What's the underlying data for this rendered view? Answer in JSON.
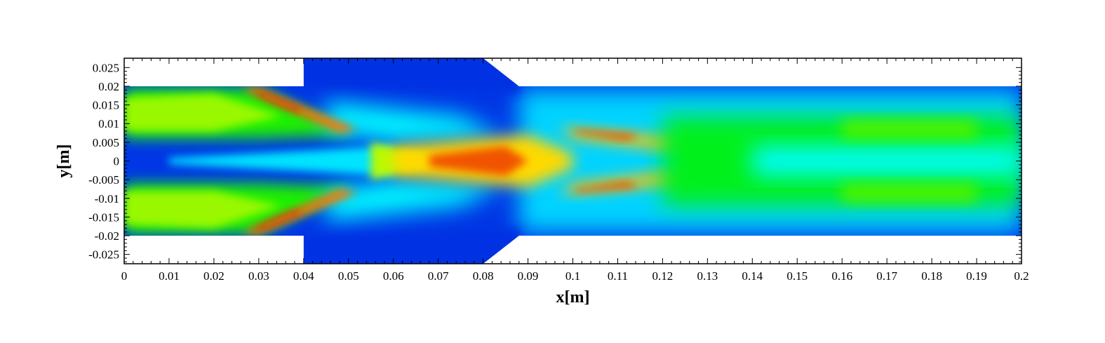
{
  "chart_data": {
    "type": "heatmap",
    "title": "",
    "xlabel": "x[m]",
    "ylabel": "y[m]",
    "xlim": [
      0,
      0.2
    ],
    "ylim": [
      -0.0275,
      0.0275
    ],
    "x_ticks": [
      "0",
      "0.01",
      "0.02",
      "0.03",
      "0.04",
      "0.05",
      "0.06",
      "0.07",
      "0.08",
      "0.09",
      "0.1",
      "0.11",
      "0.12",
      "0.13",
      "0.14",
      "0.15",
      "0.16",
      "0.17",
      "0.18",
      "0.19",
      "0.2"
    ],
    "x_tick_values": [
      0,
      0.01,
      0.02,
      0.03,
      0.04,
      0.05,
      0.06,
      0.07,
      0.08,
      0.09,
      0.1,
      0.11,
      0.12,
      0.13,
      0.14,
      0.15,
      0.16,
      0.17,
      0.18,
      0.19,
      0.2
    ],
    "y_ticks": [
      "0.025",
      "0.02",
      "0.015",
      "0.01",
      "0.005",
      "0",
      "-0.005",
      "-0.01",
      "-0.015",
      "-0.02",
      "-0.025"
    ],
    "y_tick_values": [
      0.025,
      0.02,
      0.015,
      0.01,
      0.005,
      0,
      -0.005,
      -0.01,
      -0.015,
      -0.02,
      -0.025
    ],
    "colormap": [
      "#0022dd",
      "#0077ff",
      "#00ffff",
      "#00ee00",
      "#ffff00",
      "#ff8800",
      "#dd0000"
    ],
    "legend": "none",
    "grid": false,
    "domain_walls": {
      "inlet_channel": {
        "x": [
          0,
          0.04
        ],
        "y": [
          -0.02,
          0.02
        ]
      },
      "expansion": {
        "x": [
          0.04,
          0.08
        ],
        "y": [
          -0.0275,
          0.0275
        ]
      },
      "taper": {
        "x": [
          0.08,
          0.088
        ],
        "y_from": 0.0275,
        "y_to": 0.02
      },
      "outlet_channel": {
        "x": [
          0.088,
          0.2
        ],
        "y": [
          -0.02,
          0.02
        ]
      }
    },
    "features": [
      {
        "name": "core jet",
        "x": [
          0,
          0.2
        ],
        "y": 0,
        "level": 0.25
      },
      {
        "name": "upper stream",
        "x": [
          0,
          0.04
        ],
        "y": 0.0125,
        "level": 0.55
      },
      {
        "name": "lower stream",
        "x": [
          0,
          0.04
        ],
        "y": -0.0125,
        "level": 0.55
      },
      {
        "name": "upper shock",
        "x": [
          0.027,
          0.05
        ],
        "y": [
          0.0185,
          0.008
        ],
        "level": 0.9
      },
      {
        "name": "lower shock",
        "x": [
          0.027,
          0.05
        ],
        "y": [
          -0.0185,
          -0.008
        ],
        "level": 0.9
      },
      {
        "name": "central hot region",
        "x": [
          0.058,
          0.09
        ],
        "y": 0,
        "level": 0.82
      },
      {
        "name": "upper lobe",
        "x": [
          0.1,
          0.12
        ],
        "y": 0.007,
        "level": 0.9
      },
      {
        "name": "lower lobe",
        "x": [
          0.1,
          0.12
        ],
        "y": -0.007,
        "level": 0.9
      },
      {
        "name": "downstream mixing",
        "x": [
          0.13,
          0.2
        ],
        "y": 0,
        "level": 0.45
      }
    ]
  }
}
